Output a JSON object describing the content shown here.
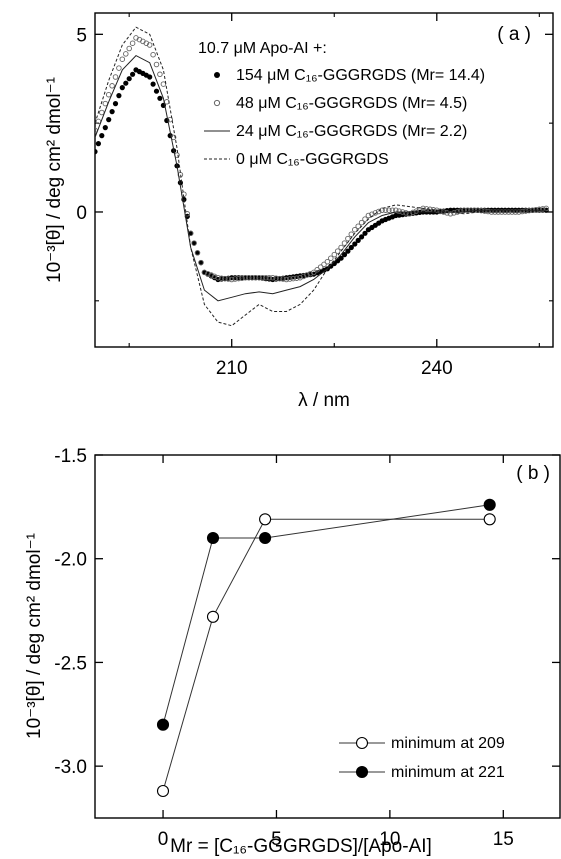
{
  "chart_data": [
    {
      "type": "line",
      "panel_label": "( a )",
      "ylabel": "10⁻³[θ] / deg cm² dmol⁻¹",
      "xlabel": "λ / nm",
      "xlim": [
        190,
        257
      ],
      "ylim": [
        -3.8,
        5.6
      ],
      "xticks": [
        210,
        240
      ],
      "yticks": [
        0,
        5
      ],
      "legend": {
        "title": "10.7 μM Apo-AI +:",
        "placement": "top-center",
        "entries": [
          "154 μM C₁₆-GGGRGDS (Mr= 14.4)",
          "48 μM C₁₆-GGGRGDS (Mr= 4.5)",
          "24 μM C₁₆-GGGRGDS (Mr= 2.2)",
          "0 μM C₁₆-GGGRGDS"
        ]
      },
      "series": [
        {
          "style": "filled-dots",
          "x": [
            190,
            192,
            194,
            196,
            198,
            200,
            202,
            204,
            206,
            208,
            210,
            212,
            214,
            216,
            218,
            220,
            222,
            224,
            226,
            228,
            230,
            232,
            234,
            236,
            238,
            240,
            242,
            244,
            246,
            248,
            250,
            252,
            254,
            256
          ],
          "y": [
            1.7,
            2.6,
            3.5,
            4.0,
            3.8,
            3.0,
            1.3,
            -0.6,
            -1.7,
            -1.9,
            -1.85,
            -1.85,
            -1.85,
            -1.9,
            -1.85,
            -1.8,
            -1.75,
            -1.6,
            -1.3,
            -0.9,
            -0.5,
            -0.25,
            -0.1,
            -0.05,
            0.0,
            0.0,
            0.05,
            0.05,
            0.05,
            0.05,
            0.05,
            0.05,
            0.05,
            0.05
          ]
        },
        {
          "style": "open-circles",
          "x": [
            190,
            192,
            194,
            196,
            198,
            200,
            202,
            204,
            206,
            208,
            210,
            212,
            214,
            216,
            218,
            220,
            222,
            224,
            226,
            228,
            230,
            232,
            234,
            236,
            238,
            240,
            242,
            244,
            246,
            248,
            250,
            252,
            254,
            256
          ],
          "y": [
            2.3,
            3.3,
            4.3,
            4.9,
            4.7,
            3.6,
            1.6,
            -0.6,
            -1.7,
            -1.85,
            -1.9,
            -1.85,
            -1.85,
            -1.85,
            -1.9,
            -1.85,
            -1.7,
            -1.4,
            -1.0,
            -0.5,
            -0.1,
            0.05,
            0.05,
            -0.05,
            0.1,
            0.05,
            -0.05,
            0.05,
            0.05,
            0.0,
            0.0,
            0.0,
            0.05,
            0.1
          ]
        },
        {
          "style": "solid-line",
          "x": [
            190,
            192,
            194,
            196,
            198,
            200,
            202,
            204,
            206,
            208,
            210,
            212,
            214,
            216,
            218,
            220,
            222,
            224,
            226,
            228,
            230,
            232,
            234,
            236,
            238,
            240,
            242,
            244,
            246,
            248,
            250,
            252,
            254,
            256
          ],
          "y": [
            2.1,
            3.1,
            4.0,
            4.4,
            4.2,
            3.2,
            1.3,
            -1.0,
            -2.2,
            -2.5,
            -2.4,
            -2.3,
            -2.25,
            -2.3,
            -2.2,
            -2.1,
            -1.9,
            -1.6,
            -1.2,
            -0.7,
            -0.3,
            -0.1,
            0.0,
            0.0,
            0.0,
            0.0,
            0.0,
            0.0,
            0.05,
            0.05,
            0.05,
            0.05,
            0.05,
            0.05
          ]
        },
        {
          "style": "dashed-line",
          "x": [
            190,
            192,
            194,
            196,
            198,
            200,
            202,
            204,
            206,
            208,
            210,
            212,
            214,
            216,
            218,
            220,
            222,
            224,
            226,
            228,
            230,
            232,
            234,
            236,
            238,
            240,
            242,
            244,
            246,
            248,
            250,
            252,
            254,
            256
          ],
          "y": [
            2.5,
            3.7,
            4.7,
            5.2,
            5.0,
            4.0,
            1.8,
            -1.0,
            -2.6,
            -3.1,
            -3.2,
            -2.9,
            -2.6,
            -2.8,
            -2.8,
            -2.6,
            -2.2,
            -1.6,
            -1.1,
            -0.6,
            -0.2,
            0.1,
            0.2,
            0.15,
            0.1,
            0.05,
            0.0,
            -0.05,
            0.0,
            0.0,
            0.0,
            0.0,
            0.0,
            0.0
          ]
        }
      ]
    },
    {
      "type": "line",
      "panel_label": "( b )",
      "ylabel": "10⁻³[θ] / deg cm² dmol⁻¹",
      "xlabel": "Mr = [C₁₆-GGGRGDS]/[Apo-AI]",
      "xlim": [
        -3,
        17.5
      ],
      "ylim": [
        -3.25,
        -1.5
      ],
      "xticks": [
        0,
        5,
        10,
        15
      ],
      "yticks": [
        -3.0,
        -2.5,
        -2.0,
        -1.5
      ],
      "ytick_labels": [
        "-3.0",
        "-2.5",
        "-2.0",
        "-1.5"
      ],
      "legend": {
        "placement": "bottom-right",
        "entries": [
          "minimum at 209",
          "minimum at 221"
        ]
      },
      "series": [
        {
          "name": "minimum at 209",
          "marker": "open-circle",
          "x": [
            0,
            2.2,
            4.5,
            14.4
          ],
          "y": [
            -3.12,
            -2.28,
            -1.81,
            -1.81
          ]
        },
        {
          "name": "minimum at 221",
          "marker": "filled-circle",
          "x": [
            0,
            2.2,
            4.5,
            14.4
          ],
          "y": [
            -2.8,
            -1.9,
            -1.9,
            -1.74
          ]
        }
      ]
    }
  ]
}
